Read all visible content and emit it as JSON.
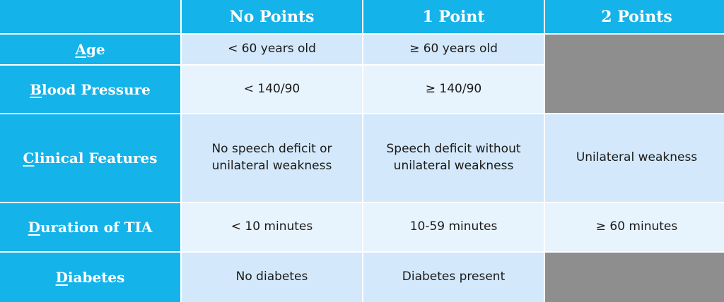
{
  "header": {
    "col1": "No Points",
    "col2": "1 Point",
    "col3": "2 Points"
  },
  "rows": {
    "age": {
      "initial": "A",
      "rest": "ge",
      "no_points": "< 60 years old",
      "one_point": "≥ 60 years old"
    },
    "blood_pressure": {
      "initial": "B",
      "rest": "lood Pressure",
      "no_points": "< 140/90",
      "one_point": "≥ 140/90"
    },
    "clinical_features": {
      "initial": "C",
      "rest": "linical Features",
      "no_points_line1": "No speech deficit or",
      "no_points_line2": "unilateral weakness",
      "one_point_line1": "Speech deficit without",
      "one_point_line2": "unilateral weakness",
      "two_points": "Unilateral weakness"
    },
    "duration": {
      "initial": "D",
      "rest": "uration of TIA",
      "no_points": "< 10 minutes",
      "one_point": "10-59 minutes",
      "two_points": "≥ 60 minutes"
    },
    "diabetes": {
      "initial": "D",
      "rest": "iabetes",
      "no_points": "No diabetes",
      "one_point": "Diabetes present"
    }
  },
  "colors": {
    "header_blue": "#14b3ea",
    "cell_dark": "#d3e8fa",
    "cell_light": "#e7f3fd",
    "blocked_gray": "#8e8e8e"
  }
}
